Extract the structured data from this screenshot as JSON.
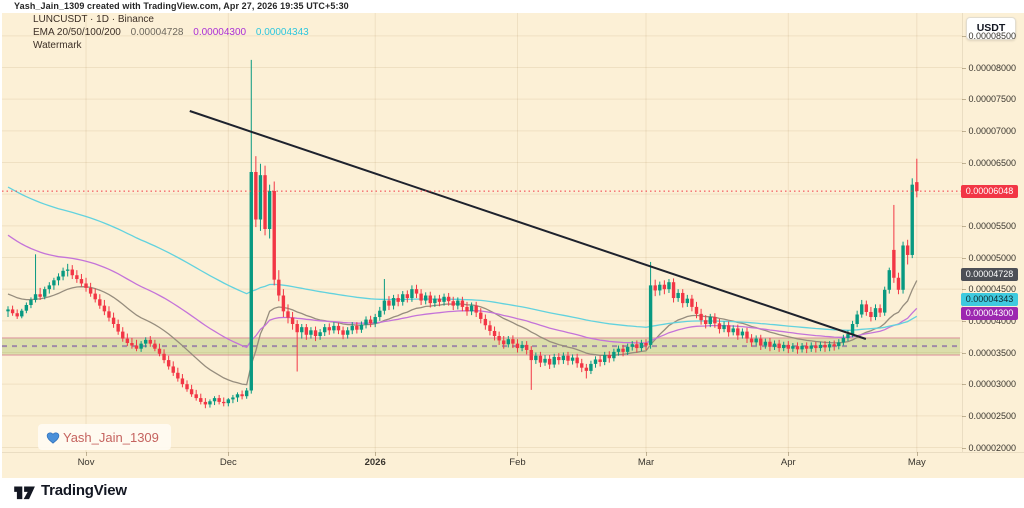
{
  "meta": {
    "attribution": "Yash_Jain_1309 created with TradingView.com, Apr 27, 2026 19:35 UTC+5:30"
  },
  "legend": {
    "symbol_line": "LUNCUSDT · 1D · Binance",
    "ema_label": "EMA 20/50/100/200",
    "ema_values": [
      {
        "text": "0.00004728",
        "color": "#6d675c"
      },
      {
        "text": "0.00004300",
        "color": "#ab2fd6"
      },
      {
        "text": "0.00004343",
        "color": "#2ec6dd"
      }
    ],
    "watermark_row": "Watermark"
  },
  "watermark": {
    "icon": "blue-heart-icon",
    "text": "Yash_Jain_1309"
  },
  "axis_button": "USDT",
  "logo": {
    "text": "TradingView"
  },
  "colors": {
    "background": "#fcf0d6",
    "up": "#089981",
    "down": "#f23645",
    "trendline": "#1e222d",
    "zone_fill": "rgba(141,181,73,0.30)",
    "zone_border": "rgba(216,126,150,0.60)",
    "zone_mid": "#a08aa8",
    "grid": "rgba(154,116,62,0.13)"
  },
  "chart_data": {
    "type": "candlestick",
    "symbol": "LUNCUSDT",
    "interval": "1D",
    "exchange": "Binance",
    "title": "LUNCUSDT · 1D · Binance",
    "note": "prices stored as integers scaled by 1e-8 USDT (e.g. 6048 = 0.00006048)",
    "ylim": [
      2000,
      8870
    ],
    "y_ticks": [
      {
        "label": "0.00008500",
        "value": 8500
      },
      {
        "label": "0.00008000",
        "value": 8000
      },
      {
        "label": "0.00007500",
        "value": 7500
      },
      {
        "label": "0.00007000",
        "value": 7000
      },
      {
        "label": "0.00006500",
        "value": 6500
      },
      {
        "label": "0.00005500",
        "value": 5500
      },
      {
        "label": "0.00005000",
        "value": 5000
      },
      {
        "label": "0.00004500",
        "value": 4500
      },
      {
        "label": "0.00004000",
        "value": 4000
      },
      {
        "label": "0.00003500",
        "value": 3500
      },
      {
        "label": "0.00003000",
        "value": 3000
      },
      {
        "label": "0.00002500",
        "value": 2500
      },
      {
        "label": "0.00002000",
        "value": 2000
      }
    ],
    "grid_price_step": 500,
    "x_ticks": [
      {
        "label": "Nov",
        "i": 17
      },
      {
        "label": "Dec",
        "i": 48
      },
      {
        "label": "2026",
        "i": 80,
        "bold": true
      },
      {
        "label": "Feb",
        "i": 111
      },
      {
        "label": "Mar",
        "i": 139
      },
      {
        "label": "Apr",
        "i": 170
      },
      {
        "label": "May",
        "i": 198
      }
    ],
    "last_price": {
      "text": "0.00006048",
      "value": 6048,
      "color": "#f23645"
    },
    "badges": [
      {
        "text": "0.00006048",
        "value": 6048,
        "bg": "#f23645",
        "fg": "#ffffff",
        "name": "last-price-badge"
      },
      {
        "text": "0.00004728",
        "value": 4728,
        "bg": "#4d4f56",
        "fg": "#ffffff",
        "name": "ema20-badge"
      },
      {
        "text": "0.00004343",
        "value": 4343,
        "bg": "#3fcadf",
        "fg": "#10272c",
        "name": "ema100-badge"
      },
      {
        "text": "0.00004300",
        "value": 4300,
        "bg": "#9c27b0",
        "fg": "#ffffff",
        "name": "ema50-badge"
      }
    ],
    "emas": [
      {
        "period": 20,
        "color": "#968d7e",
        "seed": 4450,
        "name": "ema20-line",
        "last": 4728
      },
      {
        "period": 50,
        "color": "#c473d9",
        "seed": 5400,
        "name": "ema50-line",
        "last": 4300
      },
      {
        "period": 100,
        "color": "#62d2de",
        "seed": 6150,
        "name": "ema100-line",
        "last": 4343
      }
    ],
    "support_zone": {
      "top": 3730,
      "bottom": 3460,
      "mid": 3600
    },
    "trendline": {
      "i1": 39.6,
      "p1": 7313,
      "i2": 186.9,
      "p2": 3713
    },
    "candles": [
      [
        4150,
        4230,
        4060,
        4180
      ],
      [
        4180,
        4240,
        4080,
        4120
      ],
      [
        4120,
        4180,
        4030,
        4070
      ],
      [
        4070,
        4190,
        4040,
        4160
      ],
      [
        4160,
        4290,
        4120,
        4250
      ],
      [
        4250,
        4370,
        4200,
        4330
      ],
      [
        4330,
        5050,
        4290,
        4420
      ],
      [
        4420,
        4520,
        4330,
        4380
      ],
      [
        4380,
        4540,
        4340,
        4500
      ],
      [
        4500,
        4610,
        4430,
        4560
      ],
      [
        4560,
        4680,
        4490,
        4640
      ],
      [
        4640,
        4750,
        4560,
        4700
      ],
      [
        4700,
        4840,
        4640,
        4790
      ],
      [
        4790,
        4900,
        4700,
        4810
      ],
      [
        4810,
        4880,
        4660,
        4720
      ],
      [
        4720,
        4800,
        4600,
        4660
      ],
      [
        4660,
        4740,
        4540,
        4590
      ],
      [
        4590,
        4680,
        4460,
        4520
      ],
      [
        4520,
        4600,
        4380,
        4430
      ],
      [
        4430,
        4510,
        4290,
        4340
      ],
      [
        4340,
        4420,
        4190,
        4240
      ],
      [
        4240,
        4330,
        4090,
        4150
      ],
      [
        4150,
        4230,
        3990,
        4050
      ],
      [
        4050,
        4130,
        3890,
        3950
      ],
      [
        3950,
        4020,
        3780,
        3830
      ],
      [
        3830,
        3900,
        3670,
        3720
      ],
      [
        3720,
        3800,
        3600,
        3650
      ],
      [
        3650,
        3730,
        3560,
        3610
      ],
      [
        3610,
        3700,
        3520,
        3560
      ],
      [
        3560,
        3680,
        3510,
        3640
      ],
      [
        3640,
        3740,
        3580,
        3700
      ],
      [
        3700,
        3760,
        3590,
        3640
      ],
      [
        3640,
        3700,
        3520,
        3560
      ],
      [
        3560,
        3640,
        3440,
        3480
      ],
      [
        3480,
        3550,
        3330,
        3380
      ],
      [
        3380,
        3450,
        3230,
        3280
      ],
      [
        3280,
        3360,
        3130,
        3180
      ],
      [
        3180,
        3260,
        3040,
        3090
      ],
      [
        3090,
        3160,
        2950,
        3000
      ],
      [
        3000,
        3060,
        2880,
        2920
      ],
      [
        2920,
        2990,
        2800,
        2840
      ],
      [
        2840,
        2910,
        2740,
        2780
      ],
      [
        2780,
        2850,
        2680,
        2720
      ],
      [
        2720,
        2780,
        2620,
        2680
      ],
      [
        2680,
        2760,
        2630,
        2730
      ],
      [
        2730,
        2810,
        2670,
        2780
      ],
      [
        2780,
        2830,
        2680,
        2720
      ],
      [
        2720,
        2790,
        2650,
        2700
      ],
      [
        2700,
        2780,
        2650,
        2760
      ],
      [
        2760,
        2830,
        2700,
        2790
      ],
      [
        2790,
        2870,
        2720,
        2840
      ],
      [
        2840,
        2900,
        2760,
        2810
      ],
      [
        2810,
        2940,
        2770,
        2900
      ],
      [
        2900,
        8120,
        2850,
        6350
      ],
      [
        6350,
        6600,
        5480,
        5600
      ],
      [
        5600,
        6480,
        5420,
        6300
      ],
      [
        6300,
        6450,
        5350,
        5450
      ],
      [
        5450,
        6150,
        5300,
        6050
      ],
      [
        6050,
        6200,
        4560,
        4650
      ],
      [
        4650,
        4800,
        4310,
        4400
      ],
      [
        4400,
        4500,
        4060,
        4150
      ],
      [
        4150,
        4260,
        3960,
        4050
      ],
      [
        4050,
        4140,
        3860,
        3950
      ],
      [
        3950,
        4010,
        3200,
        3820
      ],
      [
        3820,
        3950,
        3720,
        3900
      ],
      [
        3900,
        3950,
        3700,
        3780
      ],
      [
        3780,
        3900,
        3720,
        3850
      ],
      [
        3850,
        3910,
        3680,
        3760
      ],
      [
        3760,
        3870,
        3700,
        3820
      ],
      [
        3820,
        3950,
        3760,
        3900
      ],
      [
        3900,
        3960,
        3780,
        3850
      ],
      [
        3850,
        3980,
        3800,
        3920
      ],
      [
        3920,
        3970,
        3790,
        3850
      ],
      [
        3850,
        3910,
        3710,
        3780
      ],
      [
        3780,
        3900,
        3720,
        3850
      ],
      [
        3850,
        3980,
        3790,
        3920
      ],
      [
        3920,
        3980,
        3800,
        3860
      ],
      [
        3860,
        3990,
        3810,
        3940
      ],
      [
        3940,
        4070,
        3880,
        4020
      ],
      [
        4020,
        4080,
        3900,
        3960
      ],
      [
        3960,
        4110,
        3900,
        4060
      ],
      [
        4060,
        4220,
        4000,
        4160
      ],
      [
        4160,
        4660,
        4100,
        4320
      ],
      [
        4320,
        4390,
        4170,
        4240
      ],
      [
        4240,
        4410,
        4180,
        4360
      ],
      [
        4360,
        4420,
        4230,
        4300
      ],
      [
        4300,
        4470,
        4240,
        4420
      ],
      [
        4420,
        4480,
        4290,
        4360
      ],
      [
        4360,
        4560,
        4300,
        4500
      ],
      [
        4500,
        4570,
        4360,
        4430
      ],
      [
        4430,
        4500,
        4250,
        4320
      ],
      [
        4320,
        4450,
        4260,
        4400
      ],
      [
        4400,
        4460,
        4210,
        4280
      ],
      [
        4280,
        4400,
        4220,
        4350
      ],
      [
        4350,
        4410,
        4230,
        4300
      ],
      [
        4300,
        4430,
        4240,
        4380
      ],
      [
        4380,
        4440,
        4240,
        4310
      ],
      [
        4310,
        4380,
        4170,
        4240
      ],
      [
        4240,
        4370,
        4180,
        4320
      ],
      [
        4320,
        4380,
        4150,
        4220
      ],
      [
        4220,
        4300,
        4080,
        4150
      ],
      [
        4150,
        4290,
        4090,
        4240
      ],
      [
        4240,
        4300,
        4060,
        4130
      ],
      [
        4130,
        4200,
        3960,
        4030
      ],
      [
        4030,
        4100,
        3860,
        3930
      ],
      [
        3930,
        4000,
        3770,
        3840
      ],
      [
        3840,
        3910,
        3690,
        3760
      ],
      [
        3760,
        3830,
        3620,
        3690
      ],
      [
        3690,
        3760,
        3560,
        3630
      ],
      [
        3630,
        3760,
        3580,
        3710
      ],
      [
        3710,
        3770,
        3570,
        3640
      ],
      [
        3640,
        3710,
        3500,
        3570
      ],
      [
        3570,
        3680,
        3520,
        3620
      ],
      [
        3620,
        3680,
        3470,
        3540
      ],
      [
        3540,
        3600,
        2910,
        3380
      ],
      [
        3380,
        3500,
        3320,
        3450
      ],
      [
        3450,
        3510,
        3270,
        3340
      ],
      [
        3340,
        3460,
        3290,
        3400
      ],
      [
        3400,
        3460,
        3240,
        3310
      ],
      [
        3310,
        3480,
        3260,
        3430
      ],
      [
        3430,
        3490,
        3310,
        3380
      ],
      [
        3380,
        3500,
        3320,
        3450
      ],
      [
        3450,
        3510,
        3300,
        3370
      ],
      [
        3370,
        3470,
        3310,
        3420
      ],
      [
        3420,
        3480,
        3260,
        3330
      ],
      [
        3330,
        3400,
        3190,
        3260
      ],
      [
        3260,
        3320,
        3090,
        3210
      ],
      [
        3210,
        3370,
        3160,
        3320
      ],
      [
        3320,
        3440,
        3260,
        3390
      ],
      [
        3390,
        3450,
        3280,
        3350
      ],
      [
        3350,
        3510,
        3300,
        3460
      ],
      [
        3460,
        3520,
        3340,
        3410
      ],
      [
        3410,
        3560,
        3360,
        3510
      ],
      [
        3510,
        3610,
        3450,
        3560
      ],
      [
        3560,
        3620,
        3440,
        3510
      ],
      [
        3510,
        3640,
        3460,
        3590
      ],
      [
        3590,
        3680,
        3530,
        3630
      ],
      [
        3630,
        3690,
        3500,
        3570
      ],
      [
        3570,
        3700,
        3520,
        3650
      ],
      [
        3650,
        3710,
        3540,
        3610
      ],
      [
        3620,
        4930,
        3560,
        4560
      ],
      [
        4560,
        4650,
        4390,
        4480
      ],
      [
        4480,
        4620,
        4400,
        4570
      ],
      [
        4570,
        4640,
        4420,
        4500
      ],
      [
        4500,
        4660,
        4440,
        4610
      ],
      [
        4610,
        4670,
        4290,
        4360
      ],
      [
        4360,
        4500,
        4300,
        4440
      ],
      [
        4440,
        4500,
        4210,
        4280
      ],
      [
        4280,
        4410,
        4220,
        4350
      ],
      [
        4350,
        4410,
        4150,
        4220
      ],
      [
        4220,
        4300,
        4040,
        4110
      ],
      [
        4110,
        4190,
        3940,
        4010
      ],
      [
        4010,
        4090,
        3880,
        3950
      ],
      [
        3950,
        4110,
        3900,
        4060
      ],
      [
        4060,
        4120,
        3890,
        3960
      ],
      [
        3960,
        4030,
        3800,
        3870
      ],
      [
        3870,
        3990,
        3820,
        3930
      ],
      [
        3930,
        3990,
        3750,
        3820
      ],
      [
        3820,
        3930,
        3770,
        3880
      ],
      [
        3880,
        3940,
        3700,
        3770
      ],
      [
        3770,
        3880,
        3720,
        3830
      ],
      [
        3830,
        3890,
        3650,
        3720
      ],
      [
        3720,
        3790,
        3590,
        3660
      ],
      [
        3660,
        3770,
        3610,
        3720
      ],
      [
        3720,
        3780,
        3540,
        3610
      ],
      [
        3610,
        3720,
        3560,
        3670
      ],
      [
        3670,
        3730,
        3520,
        3590
      ],
      [
        3590,
        3690,
        3540,
        3640
      ],
      [
        3640,
        3700,
        3510,
        3570
      ],
      [
        3570,
        3670,
        3520,
        3620
      ],
      [
        3620,
        3680,
        3490,
        3560
      ],
      [
        3560,
        3650,
        3510,
        3600
      ],
      [
        3600,
        3660,
        3480,
        3550
      ],
      [
        3550,
        3650,
        3500,
        3605
      ],
      [
        3605,
        3660,
        3490,
        3560
      ],
      [
        3560,
        3660,
        3510,
        3610
      ],
      [
        3610,
        3670,
        3500,
        3570
      ],
      [
        3570,
        3670,
        3520,
        3620
      ],
      [
        3620,
        3680,
        3510,
        3580
      ],
      [
        3580,
        3680,
        3520,
        3630
      ],
      [
        3630,
        3690,
        3530,
        3600
      ],
      [
        3600,
        3710,
        3550,
        3660
      ],
      [
        3660,
        3780,
        3610,
        3730
      ],
      [
        3730,
        3850,
        3680,
        3790
      ],
      [
        3790,
        4000,
        3740,
        3950
      ],
      [
        3950,
        4160,
        3900,
        4100
      ],
      [
        4100,
        4330,
        4050,
        4260
      ],
      [
        4260,
        4320,
        4080,
        4140
      ],
      [
        4140,
        4220,
        3990,
        4060
      ],
      [
        4060,
        4260,
        4010,
        4200
      ],
      [
        4200,
        4260,
        4060,
        4130
      ],
      [
        4130,
        4540,
        4080,
        4490
      ],
      [
        4490,
        4840,
        4430,
        4800
      ],
      [
        5120,
        5830,
        4600,
        4680
      ],
      [
        4680,
        4760,
        4420,
        4490
      ],
      [
        4490,
        5250,
        4430,
        5190
      ],
      [
        5190,
        5280,
        4890,
        5040
      ],
      [
        5040,
        6250,
        4990,
        6150
      ],
      [
        6190,
        6560,
        5950,
        6048
      ]
    ]
  }
}
